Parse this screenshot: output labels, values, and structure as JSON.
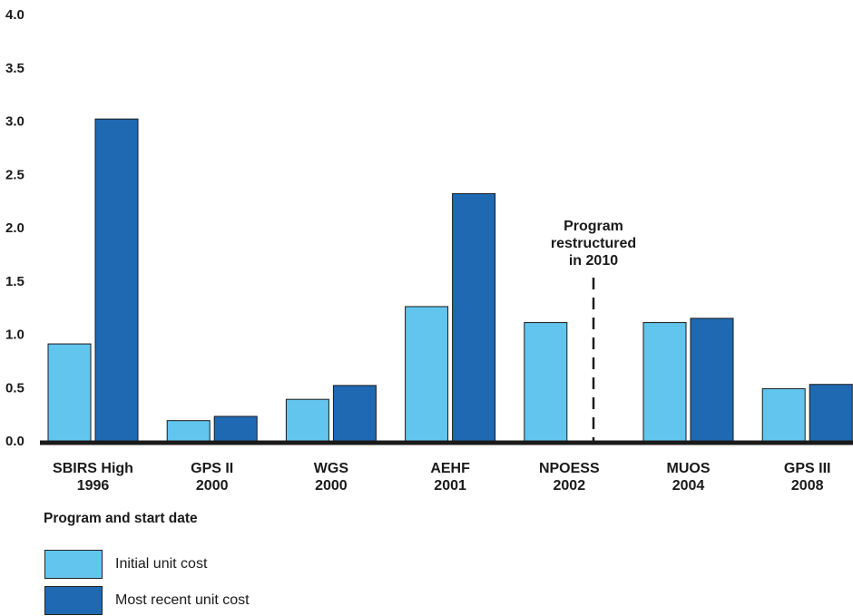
{
  "chart_data": {
    "type": "bar",
    "xlabel": "Program and start date",
    "ylim": [
      0,
      4
    ],
    "yticks": [
      "0.0",
      "0.5",
      "1.0",
      "1.5",
      "2.0",
      "2.5",
      "3.0",
      "3.5",
      "4.0"
    ],
    "categories": [
      {
        "name": "SBIRS High",
        "year": "1996"
      },
      {
        "name": "GPS II",
        "year": "2000"
      },
      {
        "name": "WGS",
        "year": "2000"
      },
      {
        "name": "AEHF",
        "year": "2001"
      },
      {
        "name": "NPOESS",
        "year": "2002"
      },
      {
        "name": "MUOS",
        "year": "2004"
      },
      {
        "name": "GPS III",
        "year": "2008"
      }
    ],
    "series": [
      {
        "name": "Initial unit cost",
        "color": "#62C5EE",
        "values": [
          0.91,
          0.19,
          0.39,
          1.26,
          1.11,
          1.11,
          0.49
        ]
      },
      {
        "name": "Most recent unit cost",
        "color": "#1F69B3",
        "values": [
          3.02,
          0.23,
          0.52,
          2.32,
          null,
          1.15,
          0.53
        ]
      }
    ],
    "annotation": {
      "lines": [
        "Program",
        "restructured",
        "in 2010"
      ]
    },
    "grid": false,
    "legend_position": "bottom-left"
  }
}
